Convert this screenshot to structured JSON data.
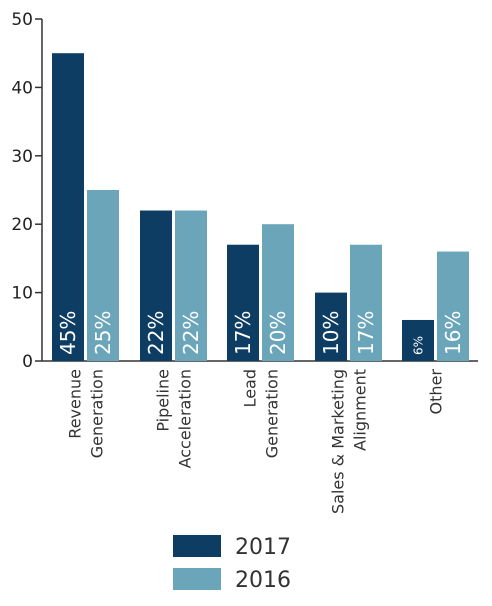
{
  "chart_data": {
    "type": "bar",
    "categories": [
      [
        "Revenue",
        "Generation"
      ],
      [
        "Pipeline",
        "Acceleration"
      ],
      [
        "Lead",
        "Generation"
      ],
      [
        "Sales & Marketing",
        "Alignment"
      ],
      [
        "Other"
      ]
    ],
    "series": [
      {
        "name": "2017",
        "values": [
          45,
          22,
          17,
          10,
          6
        ],
        "labels": [
          "45%",
          "22%",
          "17%",
          "10%",
          "6%"
        ],
        "color": "#0d3d63"
      },
      {
        "name": "2016",
        "values": [
          25,
          22,
          20,
          17,
          16
        ],
        "labels": [
          "25%",
          "22%",
          "20%",
          "17%",
          "16%"
        ],
        "color": "#6aa5ba"
      }
    ],
    "yticks": [
      0,
      10,
      20,
      30,
      40,
      50
    ],
    "ylim": [
      0,
      50
    ],
    "grid": false,
    "legend": "bottom"
  }
}
